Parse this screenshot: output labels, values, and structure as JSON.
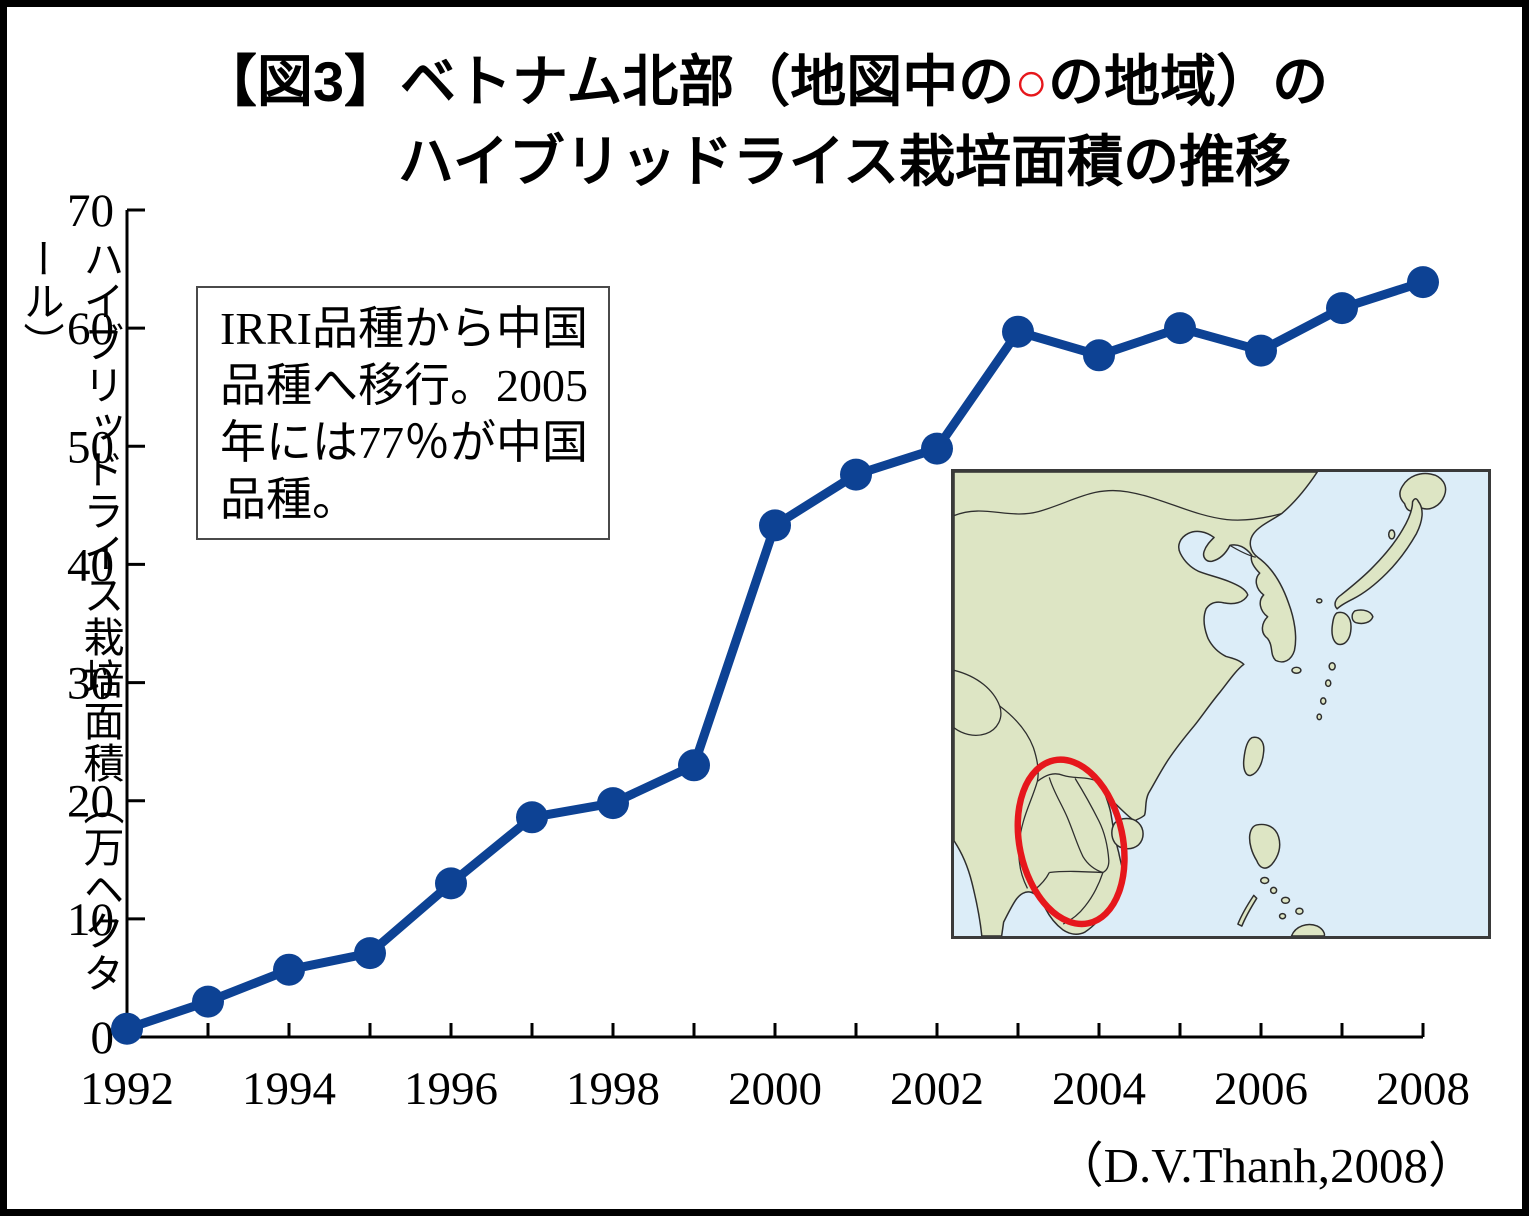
{
  "title": {
    "line1_pre": "【図3】ベトナム北部（地図中の",
    "line1_circle": "○",
    "line1_post": "の地域）の",
    "line2": "ハイブリッドライス栽培面積の推移"
  },
  "y_axis_title": "ハイブリッドライス栽培面積（万ヘクタール）",
  "annotation": {
    "text": "IRRI品種から中国\n品種へ移行。2005\n年には77％が中国\n品種。"
  },
  "source": "（D.V.Thanh,2008）",
  "chart_data": {
    "type": "line",
    "title": "【図3】ベトナム北部（地図中の○の地域）のハイブリッドライス栽培面積の推移",
    "x": [
      1992,
      1993,
      1994,
      1995,
      1996,
      1997,
      1998,
      1999,
      2000,
      2001,
      2002,
      2003,
      2004,
      2005,
      2006,
      2007,
      2008
    ],
    "values": [
      0.7,
      3,
      5.7,
      7.1,
      13,
      18.6,
      19.8,
      23,
      43.3,
      47.6,
      49.8,
      59.7,
      57.7,
      60,
      58.1,
      61.7,
      63.9
    ],
    "x_tick_labels": [
      "1992",
      "1994",
      "1996",
      "1998",
      "2000",
      "2002",
      "2004",
      "2006",
      "2008"
    ],
    "y_ticks": [
      0,
      10,
      20,
      30,
      40,
      50,
      60,
      70
    ],
    "ylim": [
      0,
      70
    ],
    "xlabel": "",
    "ylabel": "ハイブリッドライス栽培面積（万ヘクタール）",
    "grid": false,
    "legend": "none",
    "line_color": "#0d4294",
    "marker": "circle"
  },
  "map": {
    "name": "east-asia-inset-map",
    "sea_color": "#dcedf8",
    "land_color": "#dde5c4",
    "outline_color": "#2e2e2e",
    "highlight_color": "#e6171c",
    "highlight": "red-ellipse-over-northern-vietnam"
  }
}
